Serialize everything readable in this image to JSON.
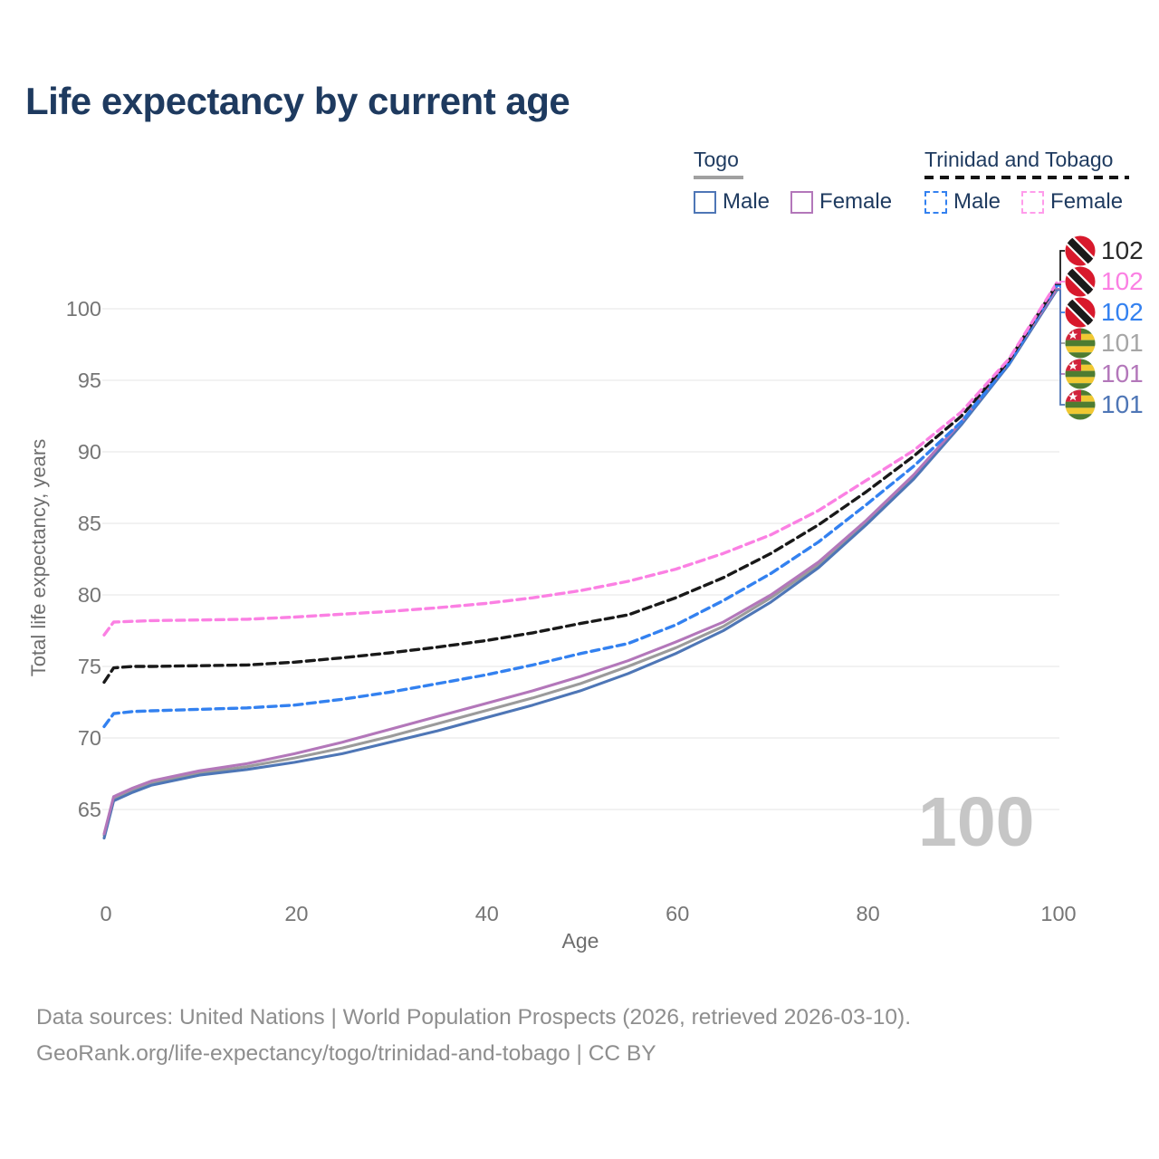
{
  "title": "Life expectancy by current age",
  "legend": {
    "togo": {
      "header": "Togo",
      "male": "Male",
      "female": "Female"
    },
    "trinidad_and_tobago": {
      "header": "Trinidad and Tobago",
      "male": "Male",
      "female": "Female"
    }
  },
  "colors": {
    "navy": "#1e3a5f",
    "togo_male": "#4e76b6",
    "togo_female": "#b377ba",
    "togo_both": "#9b9b9b",
    "tt_male": "#3381f0",
    "tt_female": "#fb80e3",
    "tt_both": "#191919",
    "tick_gray": "#757575",
    "grid_gray": "#ededed"
  },
  "chart_data": {
    "type": "line",
    "title": "Life expectancy by current age",
    "xlabel": "Age",
    "ylabel": "Total life expectancy, years",
    "x_ticks": [
      0,
      20,
      40,
      60,
      80,
      100
    ],
    "y_ticks": [
      65,
      70,
      75,
      80,
      85,
      90,
      95,
      100
    ],
    "xlim": [
      0,
      100
    ],
    "ylim": [
      62,
      103
    ],
    "grid": "horizontal",
    "legend_position": "top-right",
    "x": [
      0,
      1,
      3,
      5,
      10,
      15,
      20,
      25,
      30,
      35,
      40,
      45,
      50,
      55,
      60,
      65,
      70,
      75,
      80,
      85,
      90,
      95,
      100
    ],
    "series": [
      {
        "name": "Togo Both",
        "country": "Togo",
        "sex": "Both",
        "style": "solid",
        "color": "#9b9b9b",
        "values": [
          63.2,
          65.75,
          66.35,
          66.85,
          67.55,
          68.0,
          68.6,
          69.3,
          70.1,
          71.0,
          71.9,
          72.8,
          73.8,
          75.0,
          76.3,
          77.8,
          79.8,
          82.1,
          85.0,
          88.25,
          92.0,
          96.2,
          101.35
        ]
      },
      {
        "name": "Togo Male",
        "country": "Togo",
        "sex": "Male",
        "style": "solid",
        "color": "#4e76b6",
        "values": [
          63.0,
          65.6,
          66.2,
          66.7,
          67.4,
          67.8,
          68.3,
          68.9,
          69.7,
          70.5,
          71.4,
          72.3,
          73.3,
          74.5,
          75.9,
          77.5,
          79.5,
          81.9,
          84.9,
          88.1,
          91.9,
          96.1,
          101.3
        ]
      },
      {
        "name": "Togo Female",
        "country": "Togo",
        "sex": "Female",
        "style": "solid",
        "color": "#b377ba",
        "values": [
          63.3,
          65.9,
          66.5,
          67.0,
          67.7,
          68.2,
          68.9,
          69.7,
          70.6,
          71.5,
          72.4,
          73.3,
          74.3,
          75.4,
          76.7,
          78.1,
          80.0,
          82.3,
          85.2,
          88.4,
          92.1,
          96.3,
          101.4
        ]
      },
      {
        "name": "Trinidad and Tobago Male",
        "country": "Trinidad and Tobago",
        "sex": "Male",
        "style": "dashed",
        "color": "#3381f0",
        "values": [
          70.8,
          71.7,
          71.85,
          71.9,
          72.0,
          72.1,
          72.3,
          72.7,
          73.2,
          73.8,
          74.4,
          75.1,
          75.9,
          76.6,
          77.9,
          79.6,
          81.5,
          83.7,
          86.3,
          89.0,
          92.1,
          96.2,
          101.6
        ]
      },
      {
        "name": "Trinidad and Tobago Both",
        "country": "Trinidad and Tobago",
        "sex": "Both",
        "style": "dashed",
        "color": "#191919",
        "values": [
          73.9,
          74.9,
          75.0,
          75.0,
          75.05,
          75.1,
          75.3,
          75.6,
          75.95,
          76.35,
          76.8,
          77.35,
          78.0,
          78.6,
          79.8,
          81.2,
          82.9,
          84.9,
          87.2,
          89.7,
          92.5,
          96.4,
          101.7
        ]
      },
      {
        "name": "Trinidad and Tobago Female",
        "country": "Trinidad and Tobago",
        "sex": "Female",
        "style": "dashed",
        "color": "#fb80e3",
        "values": [
          77.2,
          78.1,
          78.15,
          78.2,
          78.25,
          78.3,
          78.45,
          78.65,
          78.85,
          79.1,
          79.4,
          79.8,
          80.3,
          80.95,
          81.8,
          82.9,
          84.2,
          85.9,
          88.0,
          90.1,
          92.8,
          96.5,
          101.8
        ]
      }
    ]
  },
  "end_labels": [
    {
      "flag": "tt",
      "value": "102",
      "color": "#2a2a2a",
      "series": "Trinidad and Tobago Both"
    },
    {
      "flag": "tt",
      "value": "102",
      "color": "#fb80e3",
      "series": "Trinidad and Tobago Female"
    },
    {
      "flag": "tt",
      "value": "102",
      "color": "#3381f0",
      "series": "Trinidad and Tobago Male"
    },
    {
      "flag": "togo",
      "value": "101",
      "color": "#a6a6a6",
      "series": "Togo Both"
    },
    {
      "flag": "togo",
      "value": "101",
      "color": "#b377ba",
      "series": "Togo Female"
    },
    {
      "flag": "togo",
      "value": "101",
      "color": "#4e76b6",
      "series": "Togo Male"
    }
  ],
  "watermark": "100",
  "footer": {
    "line1": "Data sources: United Nations | World Population Prospects (2026, retrieved 2026-03-10).",
    "line2": "GeoRank.org/life-expectancy/togo/trinidad-and-tobago | CC BY"
  }
}
